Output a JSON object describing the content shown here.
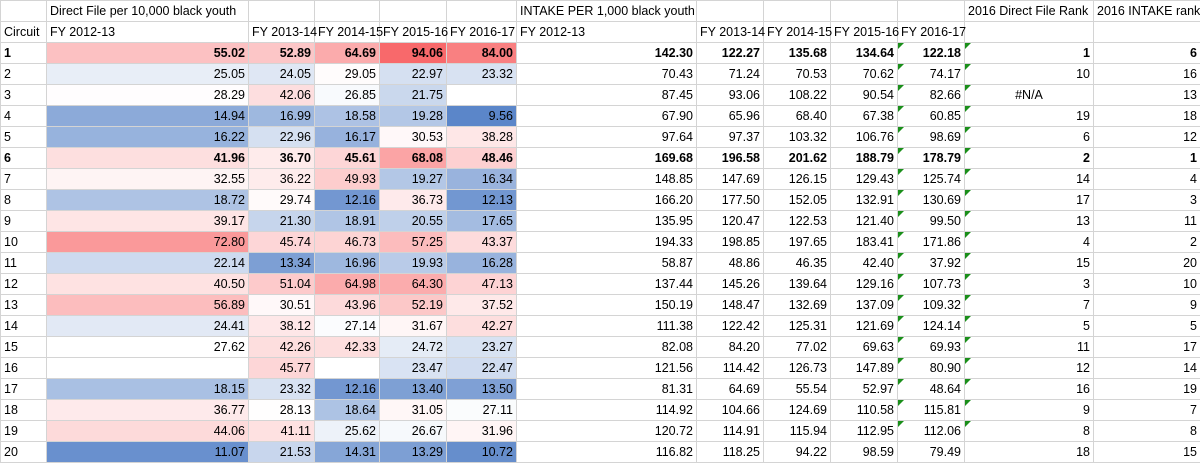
{
  "header_row1": {
    "direct_file_title": "Direct File per 10,000 black youth",
    "intake_title": "INTAKE PER 1,000 black youth",
    "df_rank_title": "2016 Direct File Rank",
    "intake_rank_title": "2016 INTAKE rank"
  },
  "header_row2": {
    "circuit": "Circuit",
    "df_years": [
      "FY 2012-13",
      "FY 2013-14",
      "FY 2014-15",
      "FY 2015-16",
      "FY 2016-17"
    ],
    "in_years": [
      "FY 2012-13",
      "FY 2013-14",
      "FY 2014-15",
      "FY 2015-16",
      "FY 2016-17"
    ]
  },
  "colors": {
    "scale_low": "#5b86c9",
    "scale_mid": "#ffffff",
    "scale_high": "#f8696b",
    "flag": "#1a8f1a"
  },
  "rows": [
    {
      "circuit": "1",
      "bold": true,
      "df": [
        "55.02",
        "52.89",
        "64.69",
        "94.06",
        "84.00"
      ],
      "intake": [
        "142.30",
        "122.27",
        "135.68",
        "134.64",
        "122.18"
      ],
      "df_rank": "1",
      "intake_rank": "6"
    },
    {
      "circuit": "2",
      "bold": false,
      "df": [
        "25.05",
        "24.05",
        "29.05",
        "22.97",
        "23.32"
      ],
      "intake": [
        "70.43",
        "71.24",
        "70.53",
        "70.62",
        "74.17"
      ],
      "df_rank": "10",
      "intake_rank": "16"
    },
    {
      "circuit": "3",
      "bold": false,
      "df": [
        "28.29",
        "42.06",
        "26.85",
        "21.75",
        ""
      ],
      "intake": [
        "87.45",
        "93.06",
        "108.22",
        "90.54",
        "82.66"
      ],
      "df_rank": "#N/A",
      "intake_rank": "13"
    },
    {
      "circuit": "4",
      "bold": false,
      "df": [
        "14.94",
        "16.99",
        "18.58",
        "19.28",
        "9.56"
      ],
      "intake": [
        "67.90",
        "65.96",
        "68.40",
        "67.38",
        "60.85"
      ],
      "df_rank": "19",
      "intake_rank": "18"
    },
    {
      "circuit": "5",
      "bold": false,
      "df": [
        "16.22",
        "22.96",
        "16.17",
        "30.53",
        "38.28"
      ],
      "intake": [
        "97.64",
        "97.37",
        "103.32",
        "106.76",
        "98.69"
      ],
      "df_rank": "6",
      "intake_rank": "12"
    },
    {
      "circuit": "6",
      "bold": true,
      "df": [
        "41.96",
        "36.70",
        "45.61",
        "68.08",
        "48.46"
      ],
      "intake": [
        "169.68",
        "196.58",
        "201.62",
        "188.79",
        "178.79"
      ],
      "df_rank": "2",
      "intake_rank": "1"
    },
    {
      "circuit": "7",
      "bold": false,
      "df": [
        "32.55",
        "36.22",
        "49.93",
        "19.27",
        "16.34"
      ],
      "intake": [
        "148.85",
        "147.69",
        "126.15",
        "129.43",
        "125.74"
      ],
      "df_rank": "14",
      "intake_rank": "4"
    },
    {
      "circuit": "8",
      "bold": false,
      "df": [
        "18.72",
        "29.74",
        "12.16",
        "36.73",
        "12.13"
      ],
      "intake": [
        "166.20",
        "177.50",
        "152.05",
        "132.91",
        "130.69"
      ],
      "df_rank": "17",
      "intake_rank": "3"
    },
    {
      "circuit": "9",
      "bold": false,
      "df": [
        "39.17",
        "21.30",
        "18.91",
        "20.55",
        "17.65"
      ],
      "intake": [
        "135.95",
        "120.47",
        "122.53",
        "121.40",
        "99.50"
      ],
      "df_rank": "13",
      "intake_rank": "11"
    },
    {
      "circuit": "10",
      "bold": false,
      "df": [
        "72.80",
        "45.74",
        "46.73",
        "57.25",
        "43.37"
      ],
      "intake": [
        "194.33",
        "198.85",
        "197.65",
        "183.41",
        "171.86"
      ],
      "df_rank": "4",
      "intake_rank": "2"
    },
    {
      "circuit": "11",
      "bold": false,
      "df": [
        "22.14",
        "13.34",
        "16.96",
        "19.93",
        "16.28"
      ],
      "intake": [
        "58.87",
        "48.86",
        "46.35",
        "42.40",
        "37.92"
      ],
      "df_rank": "15",
      "intake_rank": "20"
    },
    {
      "circuit": "12",
      "bold": false,
      "df": [
        "40.50",
        "51.04",
        "64.98",
        "64.30",
        "47.13"
      ],
      "intake": [
        "137.44",
        "145.26",
        "139.64",
        "129.16",
        "107.73"
      ],
      "df_rank": "3",
      "intake_rank": "10"
    },
    {
      "circuit": "13",
      "bold": false,
      "df": [
        "56.89",
        "30.51",
        "43.96",
        "52.19",
        "37.52"
      ],
      "intake": [
        "150.19",
        "148.47",
        "132.69",
        "137.09",
        "109.32"
      ],
      "df_rank": "7",
      "intake_rank": "9"
    },
    {
      "circuit": "14",
      "bold": false,
      "df": [
        "24.41",
        "38.12",
        "27.14",
        "31.67",
        "42.27"
      ],
      "intake": [
        "111.38",
        "122.42",
        "125.31",
        "121.69",
        "124.14"
      ],
      "df_rank": "5",
      "intake_rank": "5"
    },
    {
      "circuit": "15",
      "bold": false,
      "df": [
        "27.62",
        "42.26",
        "42.33",
        "24.72",
        "23.27"
      ],
      "intake": [
        "82.08",
        "84.20",
        "77.02",
        "69.63",
        "69.93"
      ],
      "df_rank": "11",
      "intake_rank": "17"
    },
    {
      "circuit": "16",
      "bold": false,
      "df": [
        "",
        "45.77",
        "",
        "23.47",
        "22.47"
      ],
      "intake": [
        "121.56",
        "114.42",
        "126.73",
        "147.89",
        "80.90"
      ],
      "df_rank": "12",
      "intake_rank": "14"
    },
    {
      "circuit": "17",
      "bold": false,
      "df": [
        "18.15",
        "23.32",
        "12.16",
        "13.40",
        "13.50"
      ],
      "intake": [
        "81.31",
        "64.69",
        "55.54",
        "52.97",
        "48.64"
      ],
      "df_rank": "16",
      "intake_rank": "19"
    },
    {
      "circuit": "18",
      "bold": false,
      "df": [
        "36.77",
        "28.13",
        "18.64",
        "31.05",
        "27.11"
      ],
      "intake": [
        "114.92",
        "104.66",
        "124.69",
        "110.58",
        "115.81"
      ],
      "df_rank": "9",
      "intake_rank": "7"
    },
    {
      "circuit": "19",
      "bold": false,
      "df": [
        "44.06",
        "41.11",
        "25.62",
        "26.67",
        "31.96"
      ],
      "intake": [
        "120.72",
        "114.91",
        "115.94",
        "112.95",
        "112.06"
      ],
      "df_rank": "8",
      "intake_rank": "8"
    },
    {
      "circuit": "20",
      "bold": false,
      "df": [
        "11.07",
        "21.53",
        "14.31",
        "13.29",
        "10.72"
      ],
      "intake": [
        "116.82",
        "118.25",
        "94.22",
        "98.59",
        "79.49"
      ],
      "df_rank": "18",
      "intake_rank": "15"
    }
  ]
}
